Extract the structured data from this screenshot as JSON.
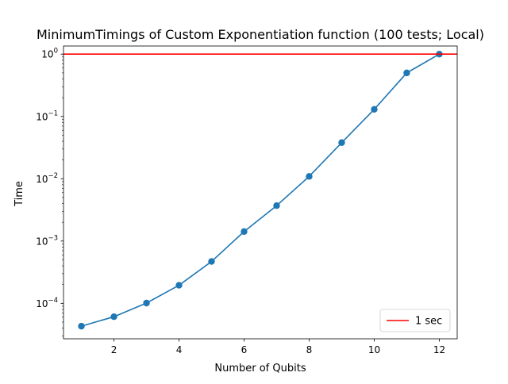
{
  "chart_data": {
    "type": "line",
    "title": "MinimumTimings of Custom Exponentiation function (100 tests; Local)",
    "xlabel": "Number of Qubits",
    "ylabel": "Time",
    "yscale": "log",
    "xlim": [
      0.45,
      12.55
    ],
    "ylim": [
      2.7e-05,
      1.35
    ],
    "x_ticks": [
      2,
      4,
      6,
      8,
      10,
      12
    ],
    "x_tick_labels": [
      "2",
      "4",
      "6",
      "8",
      "10",
      "12"
    ],
    "y_ticks": [
      0.0001,
      0.001,
      0.01,
      0.1,
      1
    ],
    "y_tick_labels": [
      {
        "base": "10",
        "exp": "−4"
      },
      {
        "base": "10",
        "exp": "−3"
      },
      {
        "base": "10",
        "exp": "−2"
      },
      {
        "base": "10",
        "exp": "−1"
      },
      {
        "base": "10",
        "exp": "0"
      }
    ],
    "grid": false,
    "series": [
      {
        "color": "#1f77b4",
        "marker": "circle",
        "x": [
          1,
          2,
          3,
          4,
          5,
          6,
          7,
          8,
          9,
          10,
          11,
          12
        ],
        "y": [
          4.3e-05,
          6.1e-05,
          0.000101,
          0.000195,
          0.00047,
          0.00142,
          0.0037,
          0.0109,
          0.038,
          0.13,
          0.5,
          1.0
        ]
      }
    ],
    "reference_lines": [
      {
        "name": "1 sec",
        "orientation": "horizontal",
        "y": 1,
        "color": "#ff0000"
      }
    ],
    "legend": {
      "position": "lower-right",
      "entries": [
        "1 sec"
      ]
    }
  }
}
